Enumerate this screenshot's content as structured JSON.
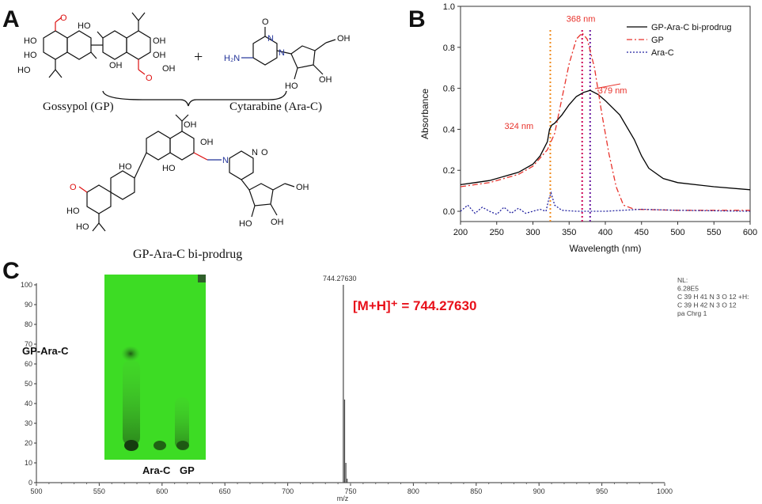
{
  "panels": {
    "a": {
      "letter": "A",
      "gp_label": "Gossypol (GP)",
      "arac_label": "Cytarabine (Ara-C)",
      "product_label": "GP-Ara-C bi-prodrug",
      "plus": "+",
      "atoms": {
        "oh": "HO",
        "ho": "OH",
        "o": "O",
        "n": "N",
        "nh2": "H₂N"
      }
    },
    "b": {
      "letter": "B",
      "chart_data": {
        "type": "line",
        "xlabel": "Wavelength (nm)",
        "ylabel": "Absorbance",
        "xlim": [
          200,
          600
        ],
        "ylim": [
          -0.05,
          1.0
        ],
        "xticks": [
          200,
          250,
          300,
          350,
          400,
          450,
          500,
          550,
          600
        ],
        "yticks": [
          0.0,
          0.2,
          0.4,
          0.6,
          0.8,
          1.0
        ],
        "legend_position": "top-right",
        "series": [
          {
            "name": "GP-Ara-C bi-prodrug",
            "color": "#000000",
            "x": [
              200,
              220,
              240,
              260,
              280,
              300,
              310,
              320,
              323,
              326,
              330,
              340,
              350,
              360,
              370,
              379,
              390,
              400,
              420,
              440,
              450,
              460,
              480,
              500,
              550,
              600
            ],
            "y": [
              0.13,
              0.14,
              0.15,
              0.17,
              0.19,
              0.23,
              0.27,
              0.34,
              0.4,
              0.42,
              0.43,
              0.47,
              0.52,
              0.56,
              0.58,
              0.59,
              0.57,
              0.54,
              0.47,
              0.35,
              0.27,
              0.21,
              0.16,
              0.14,
              0.12,
              0.105
            ]
          },
          {
            "name": "GP",
            "color": "#e8322b",
            "x": [
              200,
              240,
              280,
              300,
              320,
              330,
              340,
              350,
              360,
              368,
              375,
              385,
              395,
              405,
              415,
              425,
              440,
              500,
              600
            ],
            "y": [
              0.12,
              0.14,
              0.18,
              0.22,
              0.3,
              0.38,
              0.55,
              0.72,
              0.84,
              0.87,
              0.84,
              0.7,
              0.48,
              0.28,
              0.12,
              0.03,
              0.01,
              0.005,
              0.005
            ]
          },
          {
            "name": "Ara-C",
            "color": "#2323a0",
            "x": [
              200,
              210,
              220,
              230,
              240,
              250,
              260,
              270,
              280,
              290,
              300,
              310,
              318,
              322,
              325,
              330,
              340,
              360,
              400,
              450,
              500,
              600
            ],
            "y": [
              0.0,
              0.03,
              -0.01,
              0.02,
              0.0,
              -0.015,
              0.02,
              -0.01,
              0.015,
              -0.01,
              0.0,
              0.01,
              0.0,
              0.06,
              0.09,
              0.03,
              0.005,
              0.0,
              0.0,
              0.01,
              0.005,
              0.0
            ]
          }
        ],
        "annotations": [
          {
            "text": "368 nm",
            "x": 368,
            "y": 0.87,
            "color": "#e8322b"
          },
          {
            "text": "379 nm",
            "x": 379,
            "y": 0.59,
            "color": "#e8322b"
          },
          {
            "text": "324 nm",
            "x": 324,
            "y": 0.41,
            "color": "#e8322b"
          }
        ],
        "vlines": [
          {
            "x": 324,
            "color": "#f08a1c"
          },
          {
            "x": 368,
            "color": "#cc0055"
          },
          {
            "x": 379,
            "color": "#6a1aa0"
          }
        ]
      }
    },
    "c": {
      "letter": "C",
      "chart_data": {
        "type": "bar",
        "xlabel": "m/z",
        "xlim": [
          500,
          1000
        ],
        "ylim": [
          0,
          100
        ],
        "xticks": [
          500,
          550,
          600,
          650,
          700,
          750,
          800,
          850,
          900,
          950,
          1000
        ],
        "yticks": [
          0,
          10,
          20,
          30,
          40,
          50,
          60,
          70,
          80,
          90,
          100
        ],
        "peaks": [
          {
            "mz": 744.2763,
            "intensity": 100
          },
          {
            "mz": 745.28,
            "intensity": 42
          },
          {
            "mz": 746.28,
            "intensity": 10
          },
          {
            "mz": 747.28,
            "intensity": 2
          }
        ],
        "peak_label": "744.27630",
        "formula_annotation": "[M+H]⁺ = 744.27630",
        "info_lines": [
          "NL:",
          "6.28E5",
          "C 39 H 41 N 3 O 12 +H:",
          "C 39 H 42 N 3 O 12",
          "pa Chrg 1"
        ],
        "tlc": {
          "label_top": "GP-Ara-C",
          "label_bottom_left": "Ara-C",
          "label_bottom_right": "GP"
        }
      }
    }
  }
}
